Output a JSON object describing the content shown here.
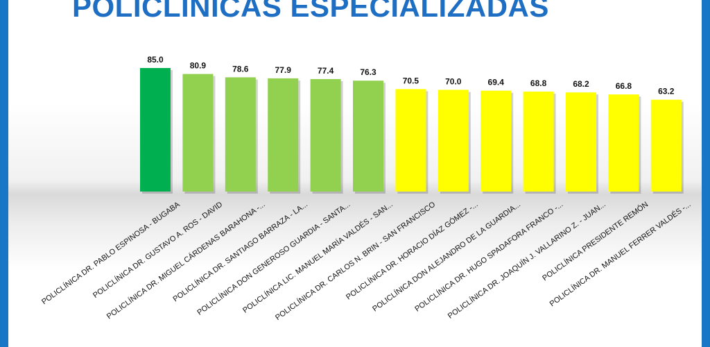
{
  "title": "POLICLÍNICAS ESPECIALIZADAS",
  "colors": {
    "frame": "#1976c6",
    "title": "#1e6fc3"
  },
  "chart_data": {
    "type": "bar",
    "grid": false,
    "legend": "none",
    "categories": [
      "POLICLÍNICA DR. PABLO ESPINOSA - BUGABA",
      "POLICLÍNICA DR. GUSTAVO A. ROS - DAVID",
      "POLICLÍNICA DR. MIGUEL CÁRDENAS BARAHONA -...",
      "POLICLÍNICA DR. SANTIAGO BARRAZA - LA...",
      "POLICLÍNICA DON GENEROSO GUARDIA - SANTA...",
      "POLICLÍNICA LIC. MANUEL MARÍA VALDÉS - SAN...",
      "POLICLÍNICA DR. CARLOS N. BRIN - SAN FRANCISCO",
      "POLICLÍNICA DR. HORACIO DÍAZ GÓMEZ -...",
      "POLICLÍNICA DON ALEJANDRO DE LA GUARDIA...",
      "POLICLÍNICA DR. HUGO SPADAFORA FRANCO -...",
      "POLICLÍNICA DR. JOAQUÍN J. VALLARINO Z. - JUAN...",
      "POLICLÍNICA PRESIDENTE REMÓN",
      "POLICLÍNICA DR. MANUEL FERRER VALDÉS -..."
    ],
    "values": [
      85.0,
      80.9,
      78.6,
      77.9,
      77.4,
      76.3,
      70.5,
      70.0,
      69.4,
      68.8,
      68.2,
      66.8,
      63.2
    ],
    "value_labels": [
      "85.0",
      "80.9",
      "78.6",
      "77.9",
      "77.4",
      "76.3",
      "70.5",
      "70.0",
      "69.4",
      "68.8",
      "68.2",
      "66.8",
      "63.2"
    ],
    "colors": [
      "#00b050",
      "#92d050",
      "#92d050",
      "#92d050",
      "#92d050",
      "#92d050",
      "#ffff00",
      "#ffff00",
      "#ffff00",
      "#ffff00",
      "#ffff00",
      "#ffff00",
      "#ffff00"
    ],
    "ylim": [
      0,
      85
    ]
  }
}
